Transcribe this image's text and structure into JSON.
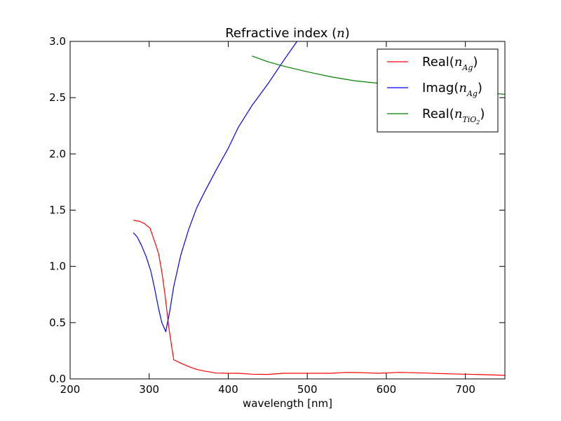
{
  "chart_data": {
    "type": "line",
    "title": {
      "prefix": "Refractive index (",
      "math": "n",
      "suffix": ")"
    },
    "xlabel": "wavelength [nm]",
    "ylabel": "",
    "xlim": [
      200,
      750
    ],
    "ylim": [
      0,
      3
    ],
    "x_ticks": [
      200,
      300,
      400,
      500,
      600,
      700
    ],
    "x_tick_labels": [
      "200",
      "300",
      "400",
      "500",
      "600",
      "700"
    ],
    "y_ticks": [
      0,
      0.5,
      1,
      1.5,
      2,
      2.5,
      3
    ],
    "y_tick_labels": [
      "0.0",
      "0.5",
      "1.0",
      "1.5",
      "2.0",
      "2.5",
      "3.0"
    ],
    "grid": false,
    "legend_position": "top-right",
    "series": [
      {
        "id": "real-ag",
        "legend_prefix": "Real(",
        "legend_math": "n",
        "legend_sub": "Ag",
        "legend_subsub": "",
        "legend_suffix": ")",
        "color": "#ff0000",
        "x": [
          280,
          288,
          294,
          301,
          308,
          312,
          316,
          320,
          325,
          331,
          340,
          350,
          360,
          370,
          385,
          400,
          413,
          430,
          450,
          470,
          490,
          510,
          530,
          550,
          570,
          590,
          617,
          650,
          680,
          700,
          720,
          750
        ],
        "y": [
          1.41,
          1.4,
          1.38,
          1.34,
          1.2,
          1.11,
          0.95,
          0.75,
          0.45,
          0.17,
          0.14,
          0.11,
          0.085,
          0.07,
          0.052,
          0.05,
          0.05,
          0.042,
          0.04,
          0.05,
          0.05,
          0.05,
          0.05,
          0.058,
          0.055,
          0.05,
          0.058,
          0.052,
          0.045,
          0.042,
          0.038,
          0.032
        ]
      },
      {
        "id": "imag-ag",
        "legend_prefix": "Imag(",
        "legend_math": "n",
        "legend_sub": "Ag",
        "legend_subsub": "",
        "legend_suffix": ")",
        "color": "#0000ff",
        "x": [
          280,
          285,
          290,
          296,
          302,
          307,
          312,
          316,
          321,
          326,
          331,
          340,
          350,
          360,
          370,
          385,
          400,
          413,
          430,
          450,
          470,
          487
        ],
        "y": [
          1.3,
          1.26,
          1.19,
          1.09,
          0.96,
          0.8,
          0.62,
          0.5,
          0.42,
          0.6,
          0.82,
          1.1,
          1.33,
          1.52,
          1.66,
          1.86,
          2.05,
          2.24,
          2.43,
          2.62,
          2.83,
          3.0
        ]
      },
      {
        "id": "real-tio2",
        "legend_prefix": "Real(",
        "legend_math": "n",
        "legend_sub": "TiO",
        "legend_subsub": "2",
        "legend_suffix": ")",
        "color": "#008000",
        "x": [
          430,
          450,
          470,
          500,
          530,
          560,
          600,
          650,
          700,
          750
        ],
        "y": [
          2.87,
          2.82,
          2.78,
          2.73,
          2.685,
          2.65,
          2.62,
          2.585,
          2.555,
          2.53
        ]
      }
    ]
  }
}
